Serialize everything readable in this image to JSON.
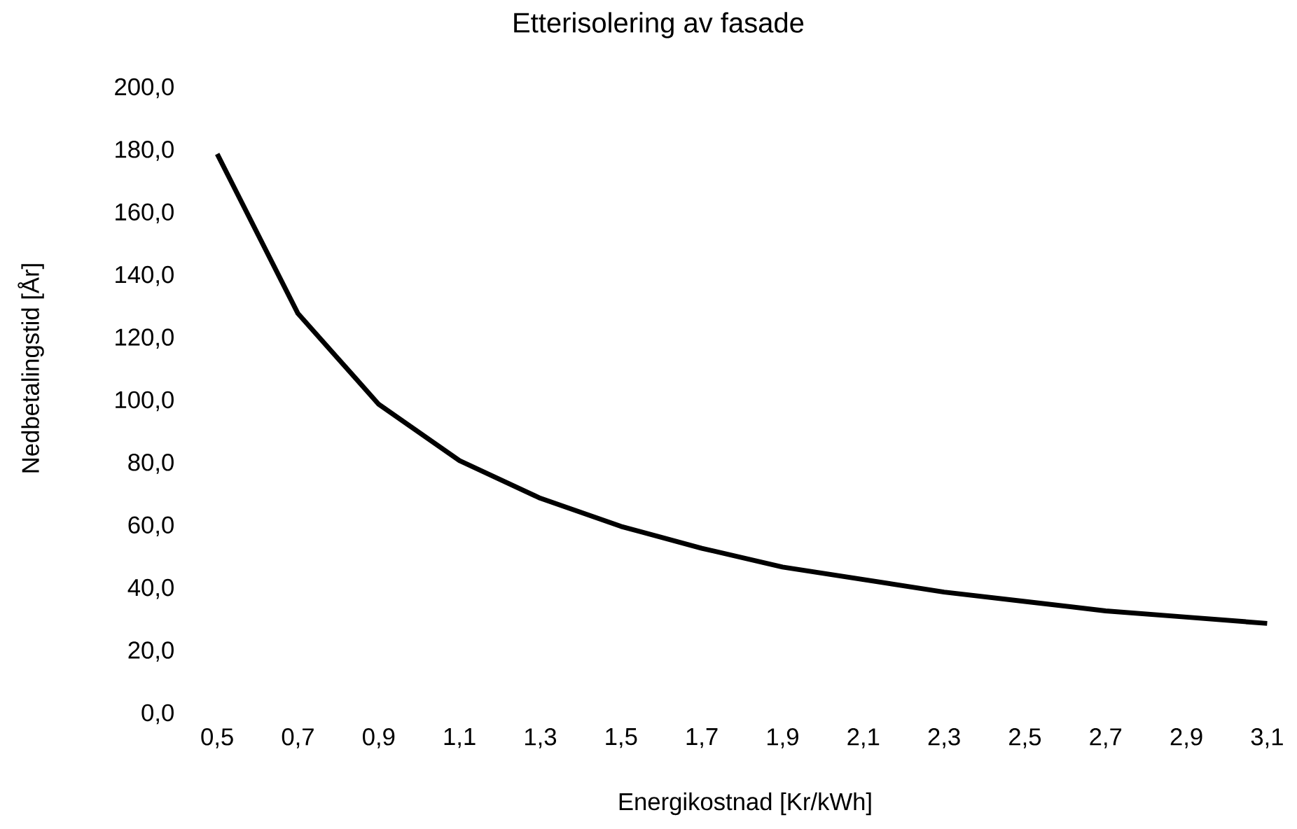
{
  "chart_data": {
    "type": "line",
    "title": "Etterisolering av fasade",
    "xlabel": "Energikostnad [Kr/kWh]",
    "ylabel": "Nedbetalingstid [År]",
    "categories": [
      "0,5",
      "0,7",
      "0,9",
      "1,1",
      "1,3",
      "1,5",
      "1,7",
      "1,9",
      "2,1",
      "2,3",
      "2,5",
      "2,7",
      "2,9",
      "3,1"
    ],
    "series": [
      {
        "color": "#000000",
        "values": [
          179,
          128,
          99,
          81,
          69,
          60,
          53,
          47,
          43,
          39,
          36,
          33,
          31,
          29
        ]
      }
    ],
    "ylim": [
      0,
      200
    ],
    "yticks": [
      {
        "value": 0,
        "label": "0,0"
      },
      {
        "value": 20,
        "label": "20,0"
      },
      {
        "value": 40,
        "label": "40,0"
      },
      {
        "value": 60,
        "label": "60,0"
      },
      {
        "value": 80,
        "label": "80,0"
      },
      {
        "value": 100,
        "label": "100,0"
      },
      {
        "value": 120,
        "label": "120,0"
      },
      {
        "value": 140,
        "label": "140,0"
      },
      {
        "value": 160,
        "label": "160,0"
      },
      {
        "value": 180,
        "label": "180,0"
      },
      {
        "value": 200,
        "label": "200,0"
      }
    ]
  }
}
